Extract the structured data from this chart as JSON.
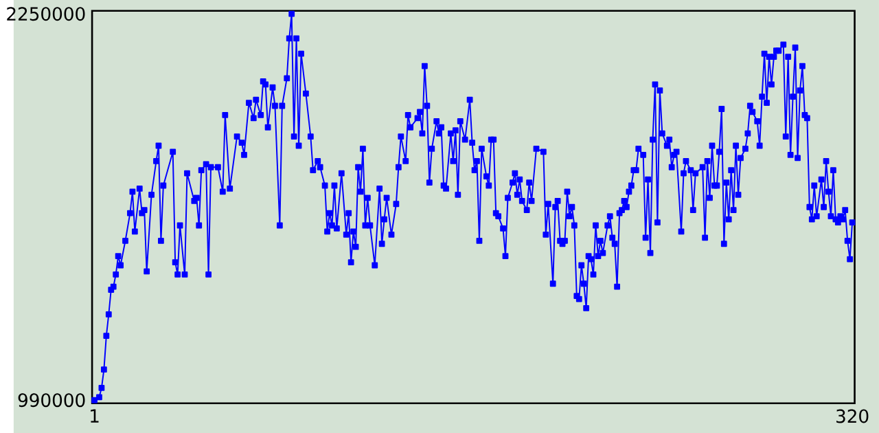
{
  "chart_data": {
    "type": "line",
    "marker": "square",
    "line_style": "solid",
    "xlim": [
      0,
      321
    ],
    "ylim": [
      980000,
      2260000
    ],
    "xticks": [
      1,
      320
    ],
    "yticks": [
      990000,
      2250000
    ],
    "x": [
      1,
      3,
      4,
      5,
      6,
      7,
      8,
      9,
      10,
      11,
      12,
      14,
      16,
      17,
      18,
      20,
      21,
      22,
      23,
      25,
      27,
      28,
      29,
      30,
      34,
      35,
      36,
      37,
      39,
      40,
      43,
      44,
      45,
      46,
      48,
      49,
      50,
      53,
      55,
      56,
      58,
      61,
      63,
      64,
      66,
      68,
      69,
      71,
      72,
      73,
      74,
      76,
      77,
      79,
      80,
      82,
      83,
      84,
      85,
      86,
      87,
      88,
      90,
      92,
      93,
      95,
      96,
      98,
      99,
      100,
      101,
      102,
      103,
      105,
      107,
      108,
      109,
      110,
      111,
      112,
      113,
      114,
      115,
      116,
      117,
      119,
      121,
      122,
      123,
      124,
      126,
      128,
      129,
      130,
      132,
      133,
      134,
      137,
      138,
      139,
      140,
      141,
      142,
      143,
      145,
      146,
      147,
      148,
      149,
      151,
      152,
      153,
      154,
      155,
      157,
      159,
      160,
      161,
      162,
      163,
      164,
      166,
      167,
      168,
      169,
      170,
      171,
      173,
      174,
      175,
      177,
      178,
      179,
      180,
      181,
      183,
      184,
      185,
      187,
      190,
      191,
      192,
      194,
      195,
      196,
      197,
      198,
      199,
      200,
      201,
      202,
      203,
      204,
      205,
      206,
      207,
      208,
      209,
      210,
      211,
      212,
      213,
      214,
      215,
      217,
      218,
      219,
      220,
      221,
      222,
      223,
      224,
      225,
      226,
      227,
      228,
      229,
      230,
      232,
      233,
      234,
      235,
      236,
      237,
      238,
      239,
      240,
      242,
      243,
      244,
      245,
      246,
      248,
      249,
      250,
      252,
      253,
      254,
      257,
      258,
      259,
      260,
      261,
      262,
      263,
      264,
      265,
      266,
      267,
      268,
      269,
      270,
      271,
      272,
      273,
      275,
      276,
      277,
      278,
      280,
      281,
      282,
      283,
      284,
      285,
      286,
      287,
      288,
      289,
      291,
      292,
      293,
      294,
      295,
      296,
      297,
      298,
      299,
      300,
      301,
      302,
      303,
      304,
      305,
      307,
      308,
      309,
      310,
      311,
      312,
      313,
      314,
      315,
      316,
      317,
      318,
      319,
      320
    ],
    "series": [
      {
        "color": "#0000ff",
        "values": [
          990000,
          1000000,
          1030000,
          1090000,
          1200000,
          1270000,
          1350000,
          1360000,
          1400000,
          1460000,
          1430000,
          1510000,
          1600000,
          1670000,
          1540000,
          1680000,
          1600000,
          1610000,
          1410000,
          1660000,
          1770000,
          1820000,
          1510000,
          1690000,
          1800000,
          1440000,
          1400000,
          1560000,
          1400000,
          1730000,
          1640000,
          1650000,
          1560000,
          1740000,
          1760000,
          1400000,
          1750000,
          1750000,
          1670000,
          1920000,
          1680000,
          1850000,
          1830000,
          1790000,
          1960000,
          1910000,
          1970000,
          1920000,
          2030000,
          2020000,
          1880000,
          2010000,
          1950000,
          1560000,
          1950000,
          2040000,
          2170000,
          2250000,
          1850000,
          2170000,
          1820000,
          2120000,
          1990000,
          1850000,
          1740000,
          1770000,
          1750000,
          1690000,
          1540000,
          1600000,
          1560000,
          1690000,
          1550000,
          1730000,
          1530000,
          1600000,
          1440000,
          1540000,
          1490000,
          1750000,
          1670000,
          1810000,
          1560000,
          1650000,
          1560000,
          1430000,
          1680000,
          1500000,
          1580000,
          1650000,
          1530000,
          1630000,
          1750000,
          1850000,
          1770000,
          1920000,
          1880000,
          1910000,
          1930000,
          1860000,
          2080000,
          1950000,
          1700000,
          1810000,
          1900000,
          1860000,
          1880000,
          1690000,
          1680000,
          1860000,
          1770000,
          1870000,
          1660000,
          1900000,
          1840000,
          1970000,
          1830000,
          1740000,
          1770000,
          1510000,
          1810000,
          1720000,
          1690000,
          1840000,
          1840000,
          1600000,
          1590000,
          1550000,
          1460000,
          1650000,
          1700000,
          1730000,
          1660000,
          1710000,
          1640000,
          1610000,
          1700000,
          1640000,
          1810000,
          1800000,
          1530000,
          1630000,
          1370000,
          1620000,
          1640000,
          1510000,
          1500000,
          1510000,
          1670000,
          1590000,
          1620000,
          1560000,
          1330000,
          1320000,
          1430000,
          1370000,
          1290000,
          1460000,
          1450000,
          1400000,
          1560000,
          1460000,
          1510000,
          1470000,
          1560000,
          1590000,
          1520000,
          1500000,
          1360000,
          1600000,
          1610000,
          1640000,
          1620000,
          1670000,
          1690000,
          1740000,
          1740000,
          1810000,
          1790000,
          1520000,
          1710000,
          1470000,
          1840000,
          2020000,
          1570000,
          2000000,
          1860000,
          1820000,
          1840000,
          1750000,
          1790000,
          1800000,
          1540000,
          1730000,
          1770000,
          1740000,
          1610000,
          1730000,
          1750000,
          1520000,
          1770000,
          1650000,
          1820000,
          1690000,
          1690000,
          1800000,
          1940000,
          1500000,
          1700000,
          1580000,
          1740000,
          1610000,
          1820000,
          1660000,
          1780000,
          1810000,
          1860000,
          1950000,
          1930000,
          1900000,
          1820000,
          1980000,
          2120000,
          1960000,
          2110000,
          2020000,
          2110000,
          2130000,
          2130000,
          2150000,
          1850000,
          2110000,
          1790000,
          1980000,
          2140000,
          1780000,
          2000000,
          2080000,
          1920000,
          1910000,
          1620000,
          1580000,
          1690000,
          1590000,
          1710000,
          1620000,
          1770000,
          1670000,
          1590000,
          1740000,
          1580000,
          1570000,
          1590000,
          1580000,
          1610000,
          1510000,
          1450000,
          1570000
        ]
      }
    ]
  }
}
